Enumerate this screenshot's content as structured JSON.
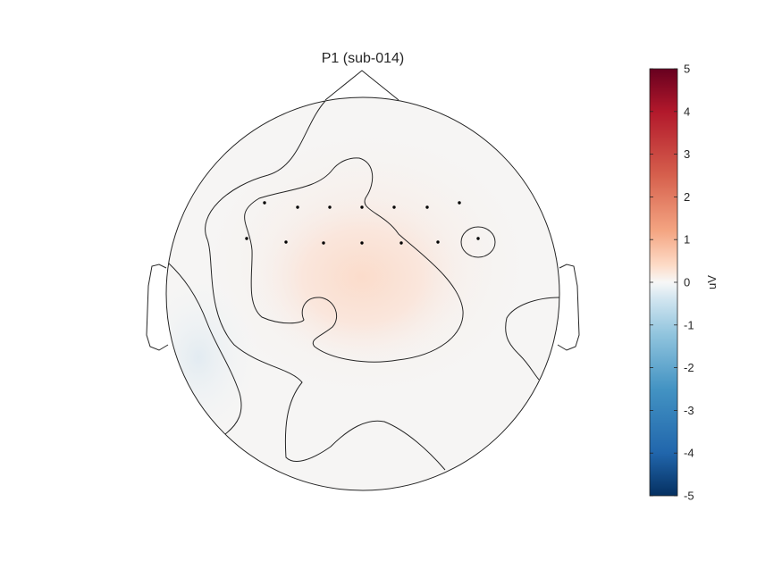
{
  "chart_data": {
    "type": "heatmap",
    "subtype": "eeg-topoplot",
    "title": "P1 (sub-014)",
    "colorbar": {
      "label": "uV",
      "min": -5,
      "max": 5,
      "ticks": [
        5,
        4,
        3,
        2,
        1,
        0,
        -1,
        -2,
        -3,
        -4,
        -5
      ],
      "colormap": "red-white-blue (diverging)",
      "colors": [
        "#67001f",
        "#b2182b",
        "#d6604d",
        "#f4a582",
        "#fddbc7",
        "#f7f7f7",
        "#d1e5f0",
        "#92c5de",
        "#4393c3",
        "#2166ac",
        "#053061"
      ]
    },
    "electrodes": {
      "row1_count": 7,
      "row2_count": 7
    },
    "field_summary": {
      "positive_peak_uV": 0.8,
      "positive_region": "central-anterior",
      "negative_peak_uV": -0.6,
      "negative_region": "left temporal",
      "contour_levels_uV": [
        0,
        0.5
      ]
    }
  }
}
